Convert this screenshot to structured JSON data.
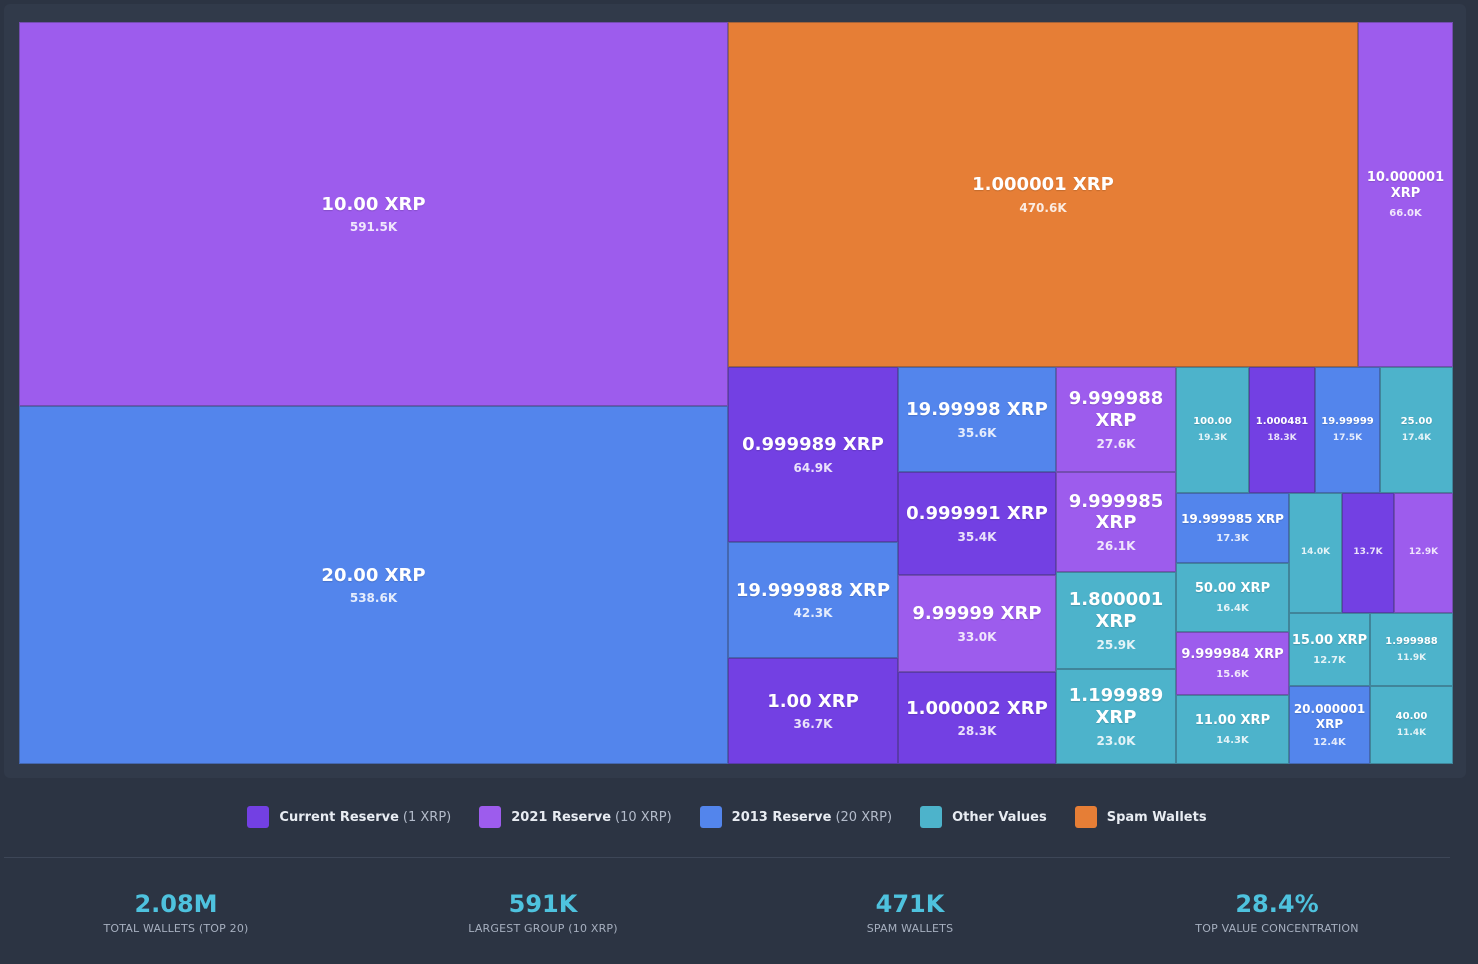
{
  "legend": [
    {
      "name": "Current Reserve",
      "note": "(1 XRP)",
      "color": "#7340e3"
    },
    {
      "name": "2021 Reserve",
      "note": "(10 XRP)",
      "color": "#9d5ced"
    },
    {
      "name": "2013 Reserve",
      "note": "(20 XRP)",
      "color": "#5385ec"
    },
    {
      "name": "Other Values",
      "note": "",
      "color": "#4db3cb"
    },
    {
      "name": "Spam Wallets",
      "note": "",
      "color": "#e67e36"
    }
  ],
  "stats": [
    {
      "value": "2.08M",
      "label": "TOTAL WALLETS (TOP 20)"
    },
    {
      "value": "591K",
      "label": "LARGEST GROUP (10 XRP)"
    },
    {
      "value": "471K",
      "label": "SPAM WALLETS"
    },
    {
      "value": "28.4%",
      "label": "TOP VALUE CONCENTRATION"
    }
  ],
  "chart_data": {
    "type": "treemap",
    "unit": "wallets",
    "items": [
      {
        "label": "10.00 XRP",
        "value_label": "591.5K",
        "value": 591500,
        "category": "2021 Reserve"
      },
      {
        "label": "20.00 XRP",
        "value_label": "538.6K",
        "value": 538600,
        "category": "2013 Reserve"
      },
      {
        "label": "1.000001 XRP",
        "value_label": "470.6K",
        "value": 470600,
        "category": "Spam Wallets"
      },
      {
        "label": "10.000001 XRP",
        "value_label": "66.0K",
        "value": 66000,
        "category": "2021 Reserve"
      },
      {
        "label": "0.999989 XRP",
        "value_label": "64.9K",
        "value": 64900,
        "category": "Current Reserve"
      },
      {
        "label": "19.999988 XRP",
        "value_label": "42.3K",
        "value": 42300,
        "category": "2013 Reserve"
      },
      {
        "label": "1.00 XRP",
        "value_label": "36.7K",
        "value": 36700,
        "category": "Current Reserve"
      },
      {
        "label": "19.99998 XRP",
        "value_label": "35.6K",
        "value": 35600,
        "category": "2013 Reserve"
      },
      {
        "label": "0.999991 XRP",
        "value_label": "35.4K",
        "value": 35400,
        "category": "Current Reserve"
      },
      {
        "label": "9.99999 XRP",
        "value_label": "33.0K",
        "value": 33000,
        "category": "2021 Reserve"
      },
      {
        "label": "1.000002 XRP",
        "value_label": "28.3K",
        "value": 28300,
        "category": "Current Reserve"
      },
      {
        "label": "9.999988 XRP",
        "value_label": "27.6K",
        "value": 27600,
        "category": "2021 Reserve"
      },
      {
        "label": "9.999985 XRP",
        "value_label": "26.1K",
        "value": 26100,
        "category": "2021 Reserve"
      },
      {
        "label": "1.800001 XRP",
        "value_label": "25.9K",
        "value": 25900,
        "category": "Other Values"
      },
      {
        "label": "1.199989 XRP",
        "value_label": "23.0K",
        "value": 23000,
        "category": "Other Values"
      },
      {
        "label": "100.00",
        "value_label": "19.3K",
        "value": 19300,
        "category": "Other Values"
      },
      {
        "label": "1.000481",
        "value_label": "18.3K",
        "value": 18300,
        "category": "Current Reserve"
      },
      {
        "label": "19.99999",
        "value_label": "17.5K",
        "value": 17500,
        "category": "2013 Reserve"
      },
      {
        "label": "25.00",
        "value_label": "17.4K",
        "value": 17400,
        "category": "Other Values"
      },
      {
        "label": "19.999985 XRP",
        "value_label": "17.3K",
        "value": 17300,
        "category": "2013 Reserve"
      },
      {
        "label": "50.00 XRP",
        "value_label": "16.4K",
        "value": 16400,
        "category": "Other Values"
      },
      {
        "label": "9.999984 XRP",
        "value_label": "15.6K",
        "value": 15600,
        "category": "2021 Reserve"
      },
      {
        "label": "11.00 XRP",
        "value_label": "14.3K",
        "value": 14300,
        "category": "Other Values"
      },
      {
        "label": "",
        "value_label": "14.0K",
        "value": 14000,
        "category": "Other Values"
      },
      {
        "label": "",
        "value_label": "13.7K",
        "value": 13700,
        "category": "Current Reserve"
      },
      {
        "label": "",
        "value_label": "12.9K",
        "value": 12900,
        "category": "2021 Reserve"
      },
      {
        "label": "15.00 XRP",
        "value_label": "12.7K",
        "value": 12700,
        "category": "Other Values"
      },
      {
        "label": "20.000001 XRP",
        "value_label": "12.4K",
        "value": 12400,
        "category": "2013 Reserve"
      },
      {
        "label": "1.999988",
        "value_label": "11.9K",
        "value": 11900,
        "category": "Other Values"
      },
      {
        "label": "40.00",
        "value_label": "11.4K",
        "value": 11400,
        "category": "Other Values"
      }
    ]
  }
}
